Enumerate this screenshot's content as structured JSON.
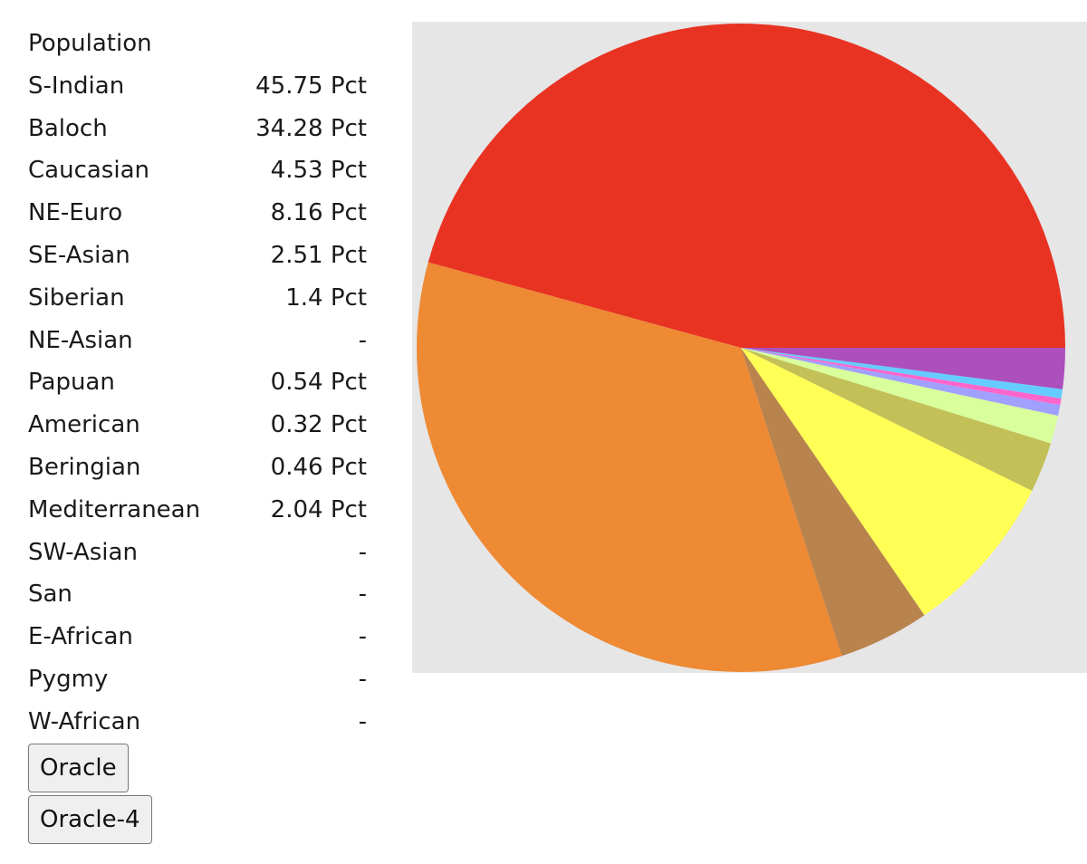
{
  "table": {
    "header": "Population",
    "rows": [
      {
        "name": "S-Indian",
        "value": "45.75 Pct"
      },
      {
        "name": "Baloch",
        "value": "34.28 Pct"
      },
      {
        "name": "Caucasian",
        "value": "4.53 Pct"
      },
      {
        "name": "NE-Euro",
        "value": "8.16 Pct"
      },
      {
        "name": "SE-Asian",
        "value": "2.51 Pct"
      },
      {
        "name": "Siberian",
        "value": "1.4 Pct"
      },
      {
        "name": "NE-Asian",
        "value": "-"
      },
      {
        "name": "Papuan",
        "value": "0.54 Pct"
      },
      {
        "name": "American",
        "value": "0.32 Pct"
      },
      {
        "name": "Beringian",
        "value": "0.46 Pct"
      },
      {
        "name": "Mediterranean",
        "value": "2.04 Pct"
      },
      {
        "name": "SW-Asian",
        "value": "-"
      },
      {
        "name": "San",
        "value": "-"
      },
      {
        "name": "E-African",
        "value": "-"
      },
      {
        "name": "Pygmy",
        "value": "-"
      },
      {
        "name": "W-African",
        "value": "-"
      }
    ]
  },
  "buttons": {
    "oracle_label": "Oracle",
    "oracle4_label": "Oracle-4"
  },
  "chart_data": {
    "type": "pie",
    "categories": [
      "S-Indian",
      "Baloch",
      "Caucasian",
      "NE-Euro",
      "SE-Asian",
      "Siberian",
      "Papuan",
      "American",
      "Beringian",
      "Mediterranean"
    ],
    "values": [
      45.75,
      34.28,
      4.53,
      8.16,
      2.51,
      1.4,
      0.54,
      0.32,
      0.46,
      2.04
    ],
    "colors": [
      "#e83323",
      "#ee8934",
      "#b8834d",
      "#ffff55",
      "#c3c058",
      "#d9ff9c",
      "#a0a0ff",
      "#ff66cc",
      "#66ccff",
      "#ad4fbd"
    ],
    "background": "#e6e6e6",
    "start_angle_deg": 0,
    "direction": "counterclockwise"
  }
}
